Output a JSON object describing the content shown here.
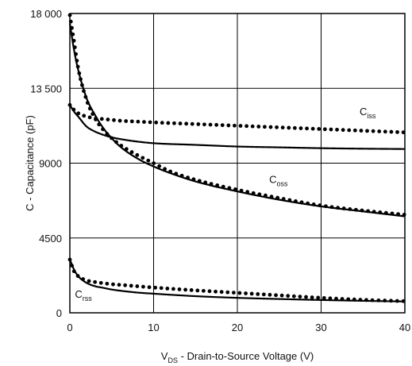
{
  "chart_data": {
    "type": "line",
    "title": "",
    "xlabel": {
      "main": "V",
      "sub": "DS",
      "rest": " - Drain-to-Source Voltage (V)"
    },
    "ylabel": "C - Capacitance (pF)",
    "xlim": [
      0,
      40
    ],
    "ylim": [
      0,
      18000
    ],
    "x_ticks": [
      0,
      10,
      20,
      30,
      40
    ],
    "x_tick_labels": [
      "0",
      "10",
      "20",
      "30",
      "40"
    ],
    "y_ticks": [
      0,
      4500,
      9000,
      13500,
      18000
    ],
    "y_tick_labels": [
      "0",
      "4500",
      "9000",
      "13 500",
      "18 000"
    ],
    "grid": true,
    "series": [
      {
        "name": "Ciss",
        "label_main": "C",
        "label_sub": "iss",
        "solid": {
          "x": [
            0,
            0.5,
            1,
            2,
            3,
            4,
            5,
            6,
            8,
            10,
            15,
            20,
            25,
            30,
            35,
            40
          ],
          "y": [
            12500,
            12100,
            11800,
            11200,
            10900,
            10700,
            10550,
            10450,
            10300,
            10200,
            10100,
            10000,
            9950,
            9900,
            9870,
            9850
          ]
        },
        "dotted": {
          "x": [
            0,
            0.5,
            1,
            2,
            3,
            4,
            5,
            6,
            8,
            10,
            15,
            20,
            25,
            30,
            35,
            40
          ],
          "y": [
            12500,
            12200,
            12000,
            11800,
            11700,
            11650,
            11600,
            11550,
            11500,
            11450,
            11350,
            11250,
            11150,
            11050,
            10950,
            10850
          ]
        }
      },
      {
        "name": "Coss",
        "label_main": "C",
        "label_sub": "oss",
        "solid": {
          "x": [
            0,
            0.5,
            1,
            2,
            3,
            4,
            5,
            6,
            8,
            10,
            12,
            15,
            20,
            25,
            30,
            35,
            40
          ],
          "y": [
            17400,
            15800,
            14600,
            12900,
            11900,
            11100,
            10500,
            10000,
            9300,
            8800,
            8400,
            7900,
            7300,
            6800,
            6400,
            6100,
            5800
          ]
        },
        "dotted": {
          "x": [
            0,
            0.5,
            1,
            2,
            3,
            4,
            5,
            6,
            8,
            10,
            12,
            15,
            20,
            25,
            30,
            35,
            40
          ],
          "y": [
            17900,
            16300,
            14700,
            12800,
            11700,
            11000,
            10500,
            10100,
            9500,
            9000,
            8500,
            8000,
            7400,
            6900,
            6450,
            6150,
            5900
          ]
        }
      },
      {
        "name": "Crss",
        "label_main": "C",
        "label_sub": "rss",
        "solid": {
          "x": [
            0,
            0.5,
            1,
            2,
            3,
            4,
            5,
            6,
            8,
            10,
            15,
            20,
            25,
            30,
            35,
            40
          ],
          "y": [
            3200,
            2600,
            2200,
            1800,
            1600,
            1500,
            1400,
            1330,
            1220,
            1150,
            1000,
            900,
            830,
            770,
            720,
            680
          ]
        },
        "dotted": {
          "x": [
            0,
            0.5,
            1,
            2,
            3,
            4,
            5,
            6,
            8,
            10,
            15,
            20,
            25,
            30,
            35,
            40
          ],
          "y": [
            3200,
            2500,
            2200,
            1950,
            1850,
            1780,
            1720,
            1680,
            1600,
            1520,
            1350,
            1200,
            1050,
            900,
            780,
            700
          ]
        }
      }
    ]
  }
}
